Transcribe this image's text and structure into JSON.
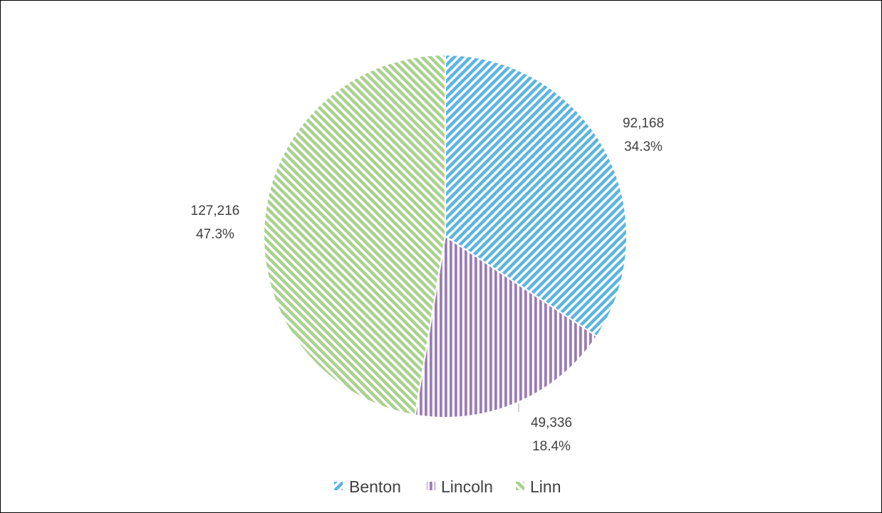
{
  "chart_data": {
    "type": "pie",
    "title": "",
    "start_angle_deg": 0,
    "direction": "clockwise",
    "legend_position": "bottom",
    "slices": [
      {
        "name": "Benton",
        "value": 92168,
        "value_label": "92,168",
        "percent_label": "34.3%",
        "color": "#5BB5E0",
        "pattern": "diagonal-stripes-down"
      },
      {
        "name": "Lincoln",
        "value": 49336,
        "value_label": "49,336",
        "percent_label": "18.4%",
        "color": "#9B7CB6",
        "pattern": "vertical-stripes"
      },
      {
        "name": "Linn",
        "value": 127216,
        "value_label": "127,216",
        "percent_label": "47.3%",
        "color": "#A9D18E",
        "pattern": "diagonal-stripes-up"
      }
    ]
  }
}
